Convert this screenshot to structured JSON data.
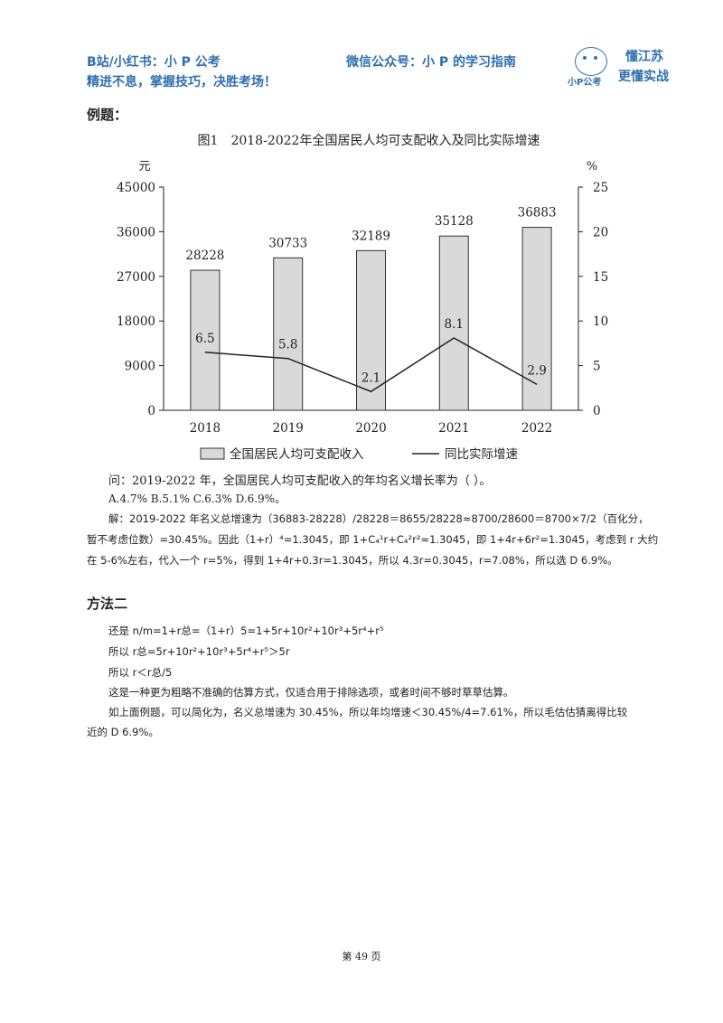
{
  "header": {
    "left_line1": "B站/小红书：小 P 公考",
    "right_line1": "微信公众号：小 P 的学习指南",
    "left_line2": "精进不息，掌握技巧，决胜考场！",
    "logo_brand": "小P公考",
    "logo_slogan1": "懂江苏",
    "logo_slogan2": "更懂实战"
  },
  "section_example": "例题：",
  "chart_data": {
    "type": "bar",
    "title": "图1　2018-2022年全国居民人均可支配收入及同比实际增速",
    "categories": [
      "2018",
      "2019",
      "2020",
      "2021",
      "2022"
    ],
    "series": [
      {
        "name": "全国居民人均可支配收入",
        "type": "bar",
        "axis": "left",
        "values": [
          28228,
          30733,
          32189,
          35128,
          36883
        ],
        "labels": [
          "28228",
          "30733",
          "32189",
          "35128",
          "36883"
        ]
      },
      {
        "name": "同比实际增速",
        "type": "line",
        "axis": "right",
        "values": [
          6.5,
          5.8,
          2.1,
          8.1,
          2.9
        ],
        "labels": [
          "6.5",
          "5.8",
          "2.1",
          "8.1",
          "2.9"
        ]
      }
    ],
    "left_unit": "元",
    "right_unit": "%",
    "left_ticks": [
      "0",
      "9000",
      "18000",
      "27000",
      "36000",
      "45000"
    ],
    "right_ticks": [
      "0",
      "5",
      "10",
      "15",
      "20",
      "25"
    ],
    "ylim_left": [
      0,
      45000
    ],
    "ylim_right": [
      0,
      25
    ],
    "bar_color": "#d9d9d9",
    "line_color": "#222222",
    "legend_position": "bottom",
    "grid": false
  },
  "question": "问：2019-2022 年，全国居民人均可支配收入的年均名义增长率为（  ）。",
  "options": "A.4.7%  B.5.1%  C.6.3%  D.6.9%。",
  "solution": {
    "line1": "解：2019-2022 年名义总增速为（36883-28228）/28228＝8655/28228≈8700/28600＝8700×7/2（百化分，",
    "line2": "暂不考虑位数）=30.45%。因此（1+r）⁴=1.3045，即 1+C₄¹r+C₄²r²≈1.3045，即 1+4r+6r²=1.3045，考虑到 r 大约",
    "line3": "在 5-6%左右，代入一个 r=5%，得到 1+4r+0.3r=1.3045，所以 4.3r=0.3045，r=7.08%，所以选 D 6.9%。"
  },
  "section_method2": "方法二",
  "method2": {
    "line1": "还是 n/m=1+r总=（1+r）5=1+5r+10r²+10r³+5r⁴+r⁵",
    "line2": "所以 r总=5r+10r²+10r³+5r⁴+r⁵＞5r",
    "line3": "所以 r＜r总/5",
    "line4": "这是一种更为粗略不准确的估算方式，仅适合用于排除选项，或者时间不够时草草估算。",
    "line5": "如上面例题，可以简化为，名义总增速为 30.45%，所以年均增速＜30.45%/4=7.61%，所以毛估估猜离得比较",
    "line6": "近的 D 6.9%。"
  },
  "footer": "第 49 页"
}
